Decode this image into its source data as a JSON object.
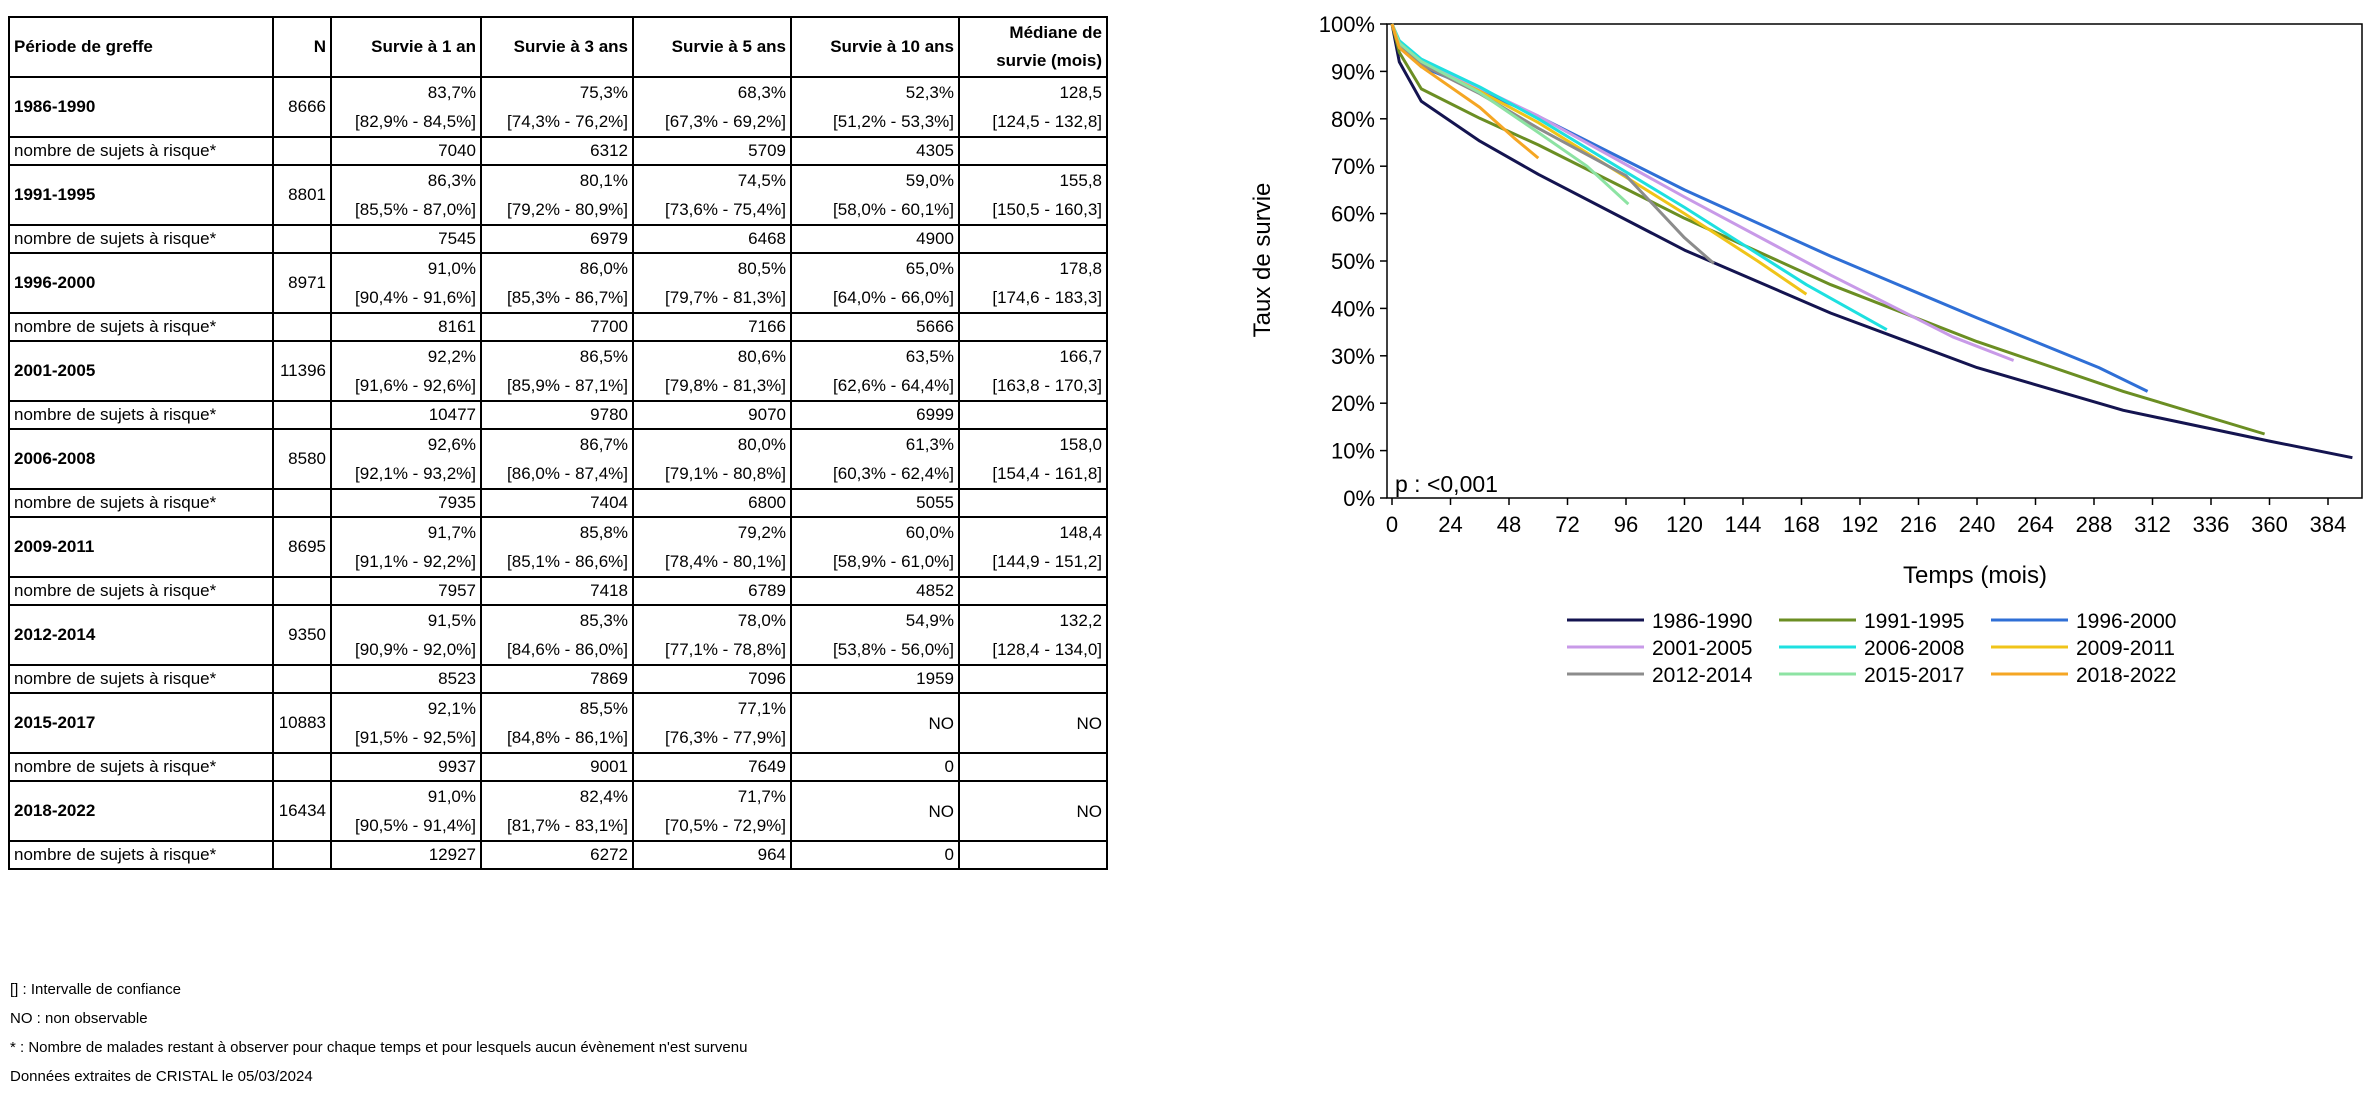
{
  "table": {
    "headers": {
      "period": "Période de greffe",
      "n": "N",
      "y1": "Survie à 1 an",
      "y3": "Survie à 3 ans",
      "y5": "Survie à 5 ans",
      "y10": "Survie à 10 ans",
      "median_line1": "Médiane de",
      "median_line2": "survie (mois)"
    },
    "risk_label": "nombre de sujets à risque*",
    "rows": [
      {
        "period": "1986-1990",
        "n": "8666",
        "y1": "83,7%",
        "y1_ci": "[82,9% - 84,5%]",
        "y3": "75,3%",
        "y3_ci": "[74,3% - 76,2%]",
        "y5": "68,3%",
        "y5_ci": "[67,3% - 69,2%]",
        "y10": "52,3%",
        "y10_ci": "[51,2% - 53,3%]",
        "median": "128,5",
        "median_ci": "[124,5 - 132,8]",
        "risk": {
          "y1": "7040",
          "y3": "6312",
          "y5": "5709",
          "y10": "4305"
        }
      },
      {
        "period": "1991-1995",
        "n": "8801",
        "y1": "86,3%",
        "y1_ci": "[85,5% - 87,0%]",
        "y3": "80,1%",
        "y3_ci": "[79,2% - 80,9%]",
        "y5": "74,5%",
        "y5_ci": "[73,6% - 75,4%]",
        "y10": "59,0%",
        "y10_ci": "[58,0% - 60,1%]",
        "median": "155,8",
        "median_ci": "[150,5 - 160,3]",
        "risk": {
          "y1": "7545",
          "y3": "6979",
          "y5": "6468",
          "y10": "4900"
        }
      },
      {
        "period": "1996-2000",
        "n": "8971",
        "y1": "91,0%",
        "y1_ci": "[90,4% - 91,6%]",
        "y3": "86,0%",
        "y3_ci": "[85,3% - 86,7%]",
        "y5": "80,5%",
        "y5_ci": "[79,7% - 81,3%]",
        "y10": "65,0%",
        "y10_ci": "[64,0% - 66,0%]",
        "median": "178,8",
        "median_ci": "[174,6 - 183,3]",
        "risk": {
          "y1": "8161",
          "y3": "7700",
          "y5": "7166",
          "y10": "5666"
        }
      },
      {
        "period": "2001-2005",
        "n": "11396",
        "y1": "92,2%",
        "y1_ci": "[91,6% - 92,6%]",
        "y3": "86,5%",
        "y3_ci": "[85,9% - 87,1%]",
        "y5": "80,6%",
        "y5_ci": "[79,8% - 81,3%]",
        "y10": "63,5%",
        "y10_ci": "[62,6% - 64,4%]",
        "median": "166,7",
        "median_ci": "[163,8 - 170,3]",
        "risk": {
          "y1": "10477",
          "y3": "9780",
          "y5": "9070",
          "y10": "6999"
        }
      },
      {
        "period": "2006-2008",
        "n": "8580",
        "y1": "92,6%",
        "y1_ci": "[92,1% - 93,2%]",
        "y3": "86,7%",
        "y3_ci": "[86,0% - 87,4%]",
        "y5": "80,0%",
        "y5_ci": "[79,1% - 80,8%]",
        "y10": "61,3%",
        "y10_ci": "[60,3% - 62,4%]",
        "median": "158,0",
        "median_ci": "[154,4 - 161,8]",
        "risk": {
          "y1": "7935",
          "y3": "7404",
          "y5": "6800",
          "y10": "5055"
        }
      },
      {
        "period": "2009-2011",
        "n": "8695",
        "y1": "91,7%",
        "y1_ci": "[91,1% - 92,2%]",
        "y3": "85,8%",
        "y3_ci": "[85,1% - 86,6%]",
        "y5": "79,2%",
        "y5_ci": "[78,4% - 80,1%]",
        "y10": "60,0%",
        "y10_ci": "[58,9% - 61,0%]",
        "median": "148,4",
        "median_ci": "[144,9 - 151,2]",
        "risk": {
          "y1": "7957",
          "y3": "7418",
          "y5": "6789",
          "y10": "4852"
        }
      },
      {
        "period": "2012-2014",
        "n": "9350",
        "y1": "91,5%",
        "y1_ci": "[90,9% - 92,0%]",
        "y3": "85,3%",
        "y3_ci": "[84,6% - 86,0%]",
        "y5": "78,0%",
        "y5_ci": "[77,1% - 78,8%]",
        "y10": "54,9%",
        "y10_ci": "[53,8% - 56,0%]",
        "median": "132,2",
        "median_ci": "[128,4 - 134,0]",
        "risk": {
          "y1": "8523",
          "y3": "7869",
          "y5": "7096",
          "y10": "1959"
        }
      },
      {
        "period": "2015-2017",
        "n": "10883",
        "y1": "92,1%",
        "y1_ci": "[91,5% - 92,5%]",
        "y3": "85,5%",
        "y3_ci": "[84,8% - 86,1%]",
        "y5": "77,1%",
        "y5_ci": "[76,3% - 77,9%]",
        "y10": "NO",
        "y10_ci": "",
        "median": "NO",
        "median_ci": "",
        "risk": {
          "y1": "9937",
          "y3": "9001",
          "y5": "7649",
          "y10": "0"
        }
      },
      {
        "period": "2018-2022",
        "n": "16434",
        "y1": "91,0%",
        "y1_ci": "[90,5% - 91,4%]",
        "y3": "82,4%",
        "y3_ci": "[81,7% - 83,1%]",
        "y5": "71,7%",
        "y5_ci": "[70,5% - 72,9%]",
        "y10": "NO",
        "y10_ci": "",
        "median": "NO",
        "median_ci": "",
        "risk": {
          "y1": "12927",
          "y3": "6272",
          "y5": "964",
          "y10": "0"
        }
      }
    ]
  },
  "footnotes": {
    "ci": "[] : Intervalle de confiance",
    "no": "NO : non observable",
    "risk": "* : Nombre de malades restant à observer pour chaque temps et pour lesquels aucun évènement n'est survenu",
    "source": "Données extraites de CRISTAL le 05/03/2024"
  },
  "chart_data": {
    "type": "line",
    "ylabel": "Taux de survie",
    "xlabel": "Temps (mois)",
    "annotation": "p : <0,001",
    "xlim": [
      0,
      400
    ],
    "ylim": [
      0,
      100
    ],
    "x_ticks": [
      0,
      24,
      48,
      72,
      96,
      120,
      144,
      168,
      192,
      216,
      240,
      264,
      288,
      312,
      336,
      360,
      384
    ],
    "y_ticks": [
      "0%",
      "10%",
      "20%",
      "30%",
      "40%",
      "50%",
      "60%",
      "70%",
      "80%",
      "90%",
      "100%"
    ],
    "legend_position": "bottom",
    "series": [
      {
        "name": "1986-1990",
        "color": "#141450",
        "points": [
          [
            0,
            100
          ],
          [
            3,
            92
          ],
          [
            12,
            83.7
          ],
          [
            36,
            75.3
          ],
          [
            60,
            68.3
          ],
          [
            120,
            52.3
          ],
          [
            180,
            39
          ],
          [
            240,
            27.5
          ],
          [
            300,
            18.5
          ],
          [
            360,
            12
          ],
          [
            394,
            8.5
          ]
        ]
      },
      {
        "name": "1991-1995",
        "color": "#6b8e23",
        "points": [
          [
            0,
            100
          ],
          [
            3,
            94
          ],
          [
            12,
            86.3
          ],
          [
            36,
            80.1
          ],
          [
            60,
            74.5
          ],
          [
            120,
            59
          ],
          [
            180,
            45
          ],
          [
            240,
            33
          ],
          [
            300,
            22.5
          ],
          [
            358,
            13.5
          ]
        ]
      },
      {
        "name": "1996-2000",
        "color": "#2f6fd6",
        "points": [
          [
            0,
            100
          ],
          [
            3,
            96
          ],
          [
            12,
            91
          ],
          [
            36,
            86
          ],
          [
            60,
            80.5
          ],
          [
            120,
            65
          ],
          [
            180,
            51
          ],
          [
            240,
            38
          ],
          [
            290,
            27.5
          ],
          [
            310,
            22.5
          ]
        ]
      },
      {
        "name": "2001-2005",
        "color": "#c89ae8",
        "points": [
          [
            0,
            100
          ],
          [
            3,
            96
          ],
          [
            12,
            92.2
          ],
          [
            36,
            86.5
          ],
          [
            60,
            80.6
          ],
          [
            120,
            63.5
          ],
          [
            180,
            47
          ],
          [
            230,
            34
          ],
          [
            255,
            29
          ]
        ]
      },
      {
        "name": "2006-2008",
        "color": "#1ee0e0",
        "points": [
          [
            0,
            100
          ],
          [
            3,
            96.5
          ],
          [
            12,
            92.6
          ],
          [
            36,
            86.7
          ],
          [
            60,
            80
          ],
          [
            120,
            61.3
          ],
          [
            170,
            45
          ],
          [
            203,
            35.5
          ]
        ]
      },
      {
        "name": "2009-2011",
        "color": "#f0c419",
        "points": [
          [
            0,
            100
          ],
          [
            3,
            96
          ],
          [
            12,
            91.7
          ],
          [
            36,
            85.8
          ],
          [
            60,
            79.2
          ],
          [
            120,
            60
          ],
          [
            150,
            50
          ],
          [
            170,
            43
          ]
        ]
      },
      {
        "name": "2012-2014",
        "color": "#8c8c8c",
        "points": [
          [
            0,
            100
          ],
          [
            3,
            96
          ],
          [
            12,
            91.5
          ],
          [
            36,
            85.3
          ],
          [
            60,
            78
          ],
          [
            96,
            68
          ],
          [
            120,
            54.9
          ],
          [
            132,
            49.5
          ]
        ]
      },
      {
        "name": "2015-2017",
        "color": "#8de3a3",
        "points": [
          [
            0,
            100
          ],
          [
            3,
            96
          ],
          [
            12,
            92.1
          ],
          [
            36,
            85.5
          ],
          [
            60,
            77.1
          ],
          [
            80,
            70
          ],
          [
            97,
            62
          ]
        ]
      },
      {
        "name": "2018-2022",
        "color": "#f5a623",
        "points": [
          [
            0,
            100
          ],
          [
            3,
            95
          ],
          [
            12,
            91
          ],
          [
            36,
            82.4
          ],
          [
            50,
            76
          ],
          [
            60,
            71.7
          ]
        ]
      }
    ]
  }
}
